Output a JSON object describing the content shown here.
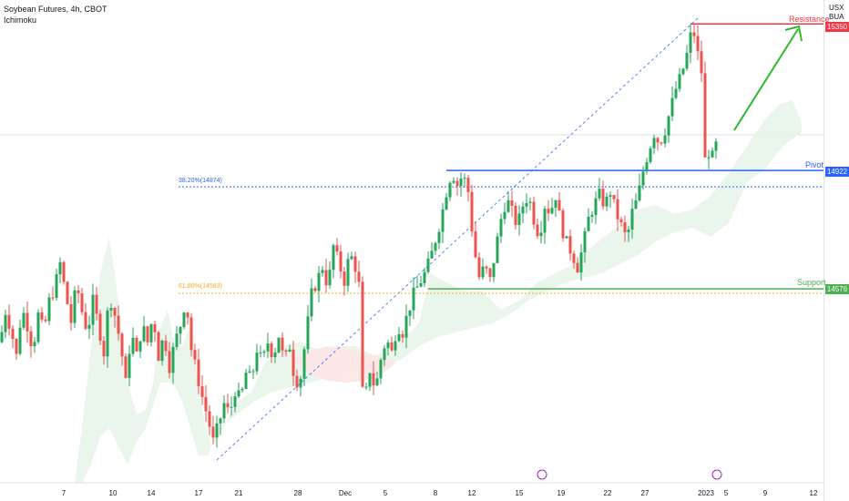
{
  "header": {
    "title": "Soybean Futures, 4h, CBOT",
    "indicator": "Ichimoku"
  },
  "price_axis": {
    "unit_line1": "USX",
    "unit_line2": "BUA"
  },
  "annotations": {
    "resistance_label": "Resistance",
    "pivot_label": "Pivot",
    "support_label": "Support",
    "resistance_value": "15350",
    "pivot_value": "14922",
    "support_value": "14576",
    "fib_382": "38.20%(14874)",
    "fib_618": "61.80%(14563)"
  },
  "colors": {
    "up": "#26a65b",
    "down": "#ef5350",
    "resistance": "#f23645",
    "pivot": "#2962ff",
    "support": "#4caf50",
    "fib": "#2962ff",
    "fib_618": "#f9a825",
    "cloud": "#e8f5e9",
    "cloud_bear": "#fde6e6",
    "arrow": "#2eb82e"
  },
  "chart_data": {
    "type": "candlestick",
    "title": "Soybean Futures, 4h, CBOT",
    "indicator": "Ichimoku",
    "y_axis": {
      "min": 14040,
      "max": 15400,
      "ticks": [
        14100,
        14200,
        14300,
        14400,
        14500,
        14600,
        14700,
        14800,
        14900,
        15000,
        15100,
        15200,
        15300
      ]
    },
    "x_axis": {
      "tick_labels": [
        "7",
        "10",
        "14",
        "17",
        "21",
        "28",
        "Dec",
        "5",
        "8",
        "12",
        "15",
        "19",
        "22",
        "27",
        "2023",
        "5",
        "9",
        "12"
      ]
    },
    "levels": {
      "resistance": 15350,
      "pivot": 14922,
      "support": 14576,
      "fib_382": 14874,
      "fib_618": 14563
    },
    "price_path": [
      [
        0,
        14420
      ],
      [
        6,
        14510
      ],
      [
        12,
        14460
      ],
      [
        18,
        14380
      ],
      [
        24,
        14520
      ],
      [
        30,
        14470
      ],
      [
        36,
        14400
      ],
      [
        42,
        14500
      ],
      [
        48,
        14450
      ],
      [
        54,
        14540
      ],
      [
        60,
        14580
      ],
      [
        66,
        14650
      ],
      [
        72,
        14560
      ],
      [
        78,
        14480
      ],
      [
        84,
        14590
      ],
      [
        90,
        14510
      ],
      [
        96,
        14450
      ],
      [
        102,
        14540
      ],
      [
        108,
        14470
      ],
      [
        114,
        14390
      ],
      [
        120,
        14560
      ],
      [
        126,
        14500
      ],
      [
        132,
        14420
      ],
      [
        138,
        14300
      ],
      [
        144,
        14450
      ],
      [
        150,
        14380
      ],
      [
        156,
        14470
      ],
      [
        162,
        14420
      ],
      [
        168,
        14500
      ],
      [
        174,
        14380
      ],
      [
        180,
        14440
      ],
      [
        186,
        14350
      ],
      [
        192,
        14420
      ],
      [
        198,
        14470
      ],
      [
        204,
        14550
      ],
      [
        210,
        14400
      ],
      [
        216,
        14330
      ],
      [
        222,
        14260
      ],
      [
        228,
        14200
      ],
      [
        234,
        14130
      ],
      [
        240,
        14180
      ],
      [
        246,
        14240
      ],
      [
        252,
        14210
      ],
      [
        258,
        14280
      ],
      [
        264,
        14250
      ],
      [
        270,
        14330
      ],
      [
        276,
        14310
      ],
      [
        282,
        14400
      ],
      [
        288,
        14360
      ],
      [
        294,
        14420
      ],
      [
        300,
        14380
      ],
      [
        306,
        14440
      ],
      [
        312,
        14360
      ],
      [
        318,
        14410
      ],
      [
        324,
        14300
      ],
      [
        330,
        14320
      ],
      [
        336,
        14440
      ],
      [
        342,
        14560
      ],
      [
        348,
        14600
      ],
      [
        354,
        14640
      ],
      [
        360,
        14580
      ],
      [
        366,
        14700
      ],
      [
        372,
        14650
      ],
      [
        378,
        14600
      ],
      [
        384,
        14680
      ],
      [
        390,
        14640
      ],
      [
        396,
        14560
      ],
      [
        400,
        14290
      ],
      [
        406,
        14340
      ],
      [
        412,
        14280
      ],
      [
        418,
        14370
      ],
      [
        424,
        14430
      ],
      [
        430,
        14390
      ],
      [
        436,
        14470
      ],
      [
        442,
        14450
      ],
      [
        448,
        14510
      ],
      [
        454,
        14560
      ],
      [
        460,
        14590
      ],
      [
        466,
        14620
      ],
      [
        472,
        14660
      ],
      [
        478,
        14720
      ],
      [
        484,
        14780
      ],
      [
        490,
        14860
      ],
      [
        496,
        14920
      ],
      [
        502,
        14880
      ],
      [
        508,
        14910
      ],
      [
        514,
        14860
      ],
      [
        520,
        14700
      ],
      [
        526,
        14610
      ],
      [
        532,
        14640
      ],
      [
        538,
        14600
      ],
      [
        544,
        14690
      ],
      [
        550,
        14780
      ],
      [
        556,
        14840
      ],
      [
        562,
        14800
      ],
      [
        568,
        14760
      ],
      [
        574,
        14820
      ],
      [
        580,
        14850
      ],
      [
        586,
        14780
      ],
      [
        592,
        14730
      ],
      [
        598,
        14820
      ],
      [
        604,
        14800
      ],
      [
        610,
        14850
      ],
      [
        616,
        14760
      ],
      [
        622,
        14710
      ],
      [
        628,
        14680
      ],
      [
        634,
        14640
      ],
      [
        640,
        14700
      ],
      [
        646,
        14780
      ],
      [
        652,
        14820
      ],
      [
        658,
        14850
      ],
      [
        664,
        14820
      ],
      [
        670,
        14860
      ],
      [
        676,
        14800
      ],
      [
        682,
        14760
      ],
      [
        688,
        14720
      ],
      [
        694,
        14800
      ],
      [
        700,
        14840
      ],
      [
        706,
        14920
      ],
      [
        712,
        14980
      ],
      [
        718,
        15030
      ],
      [
        724,
        15000
      ],
      [
        730,
        15040
      ],
      [
        736,
        15100
      ],
      [
        742,
        15160
      ],
      [
        748,
        15200
      ],
      [
        754,
        15260
      ],
      [
        760,
        15340
      ],
      [
        764,
        15300
      ],
      [
        768,
        15220
      ],
      [
        772,
        15200
      ],
      [
        776,
        15000
      ],
      [
        780,
        14950
      ],
      [
        784,
        14970
      ],
      [
        788,
        15020
      ]
    ]
  }
}
